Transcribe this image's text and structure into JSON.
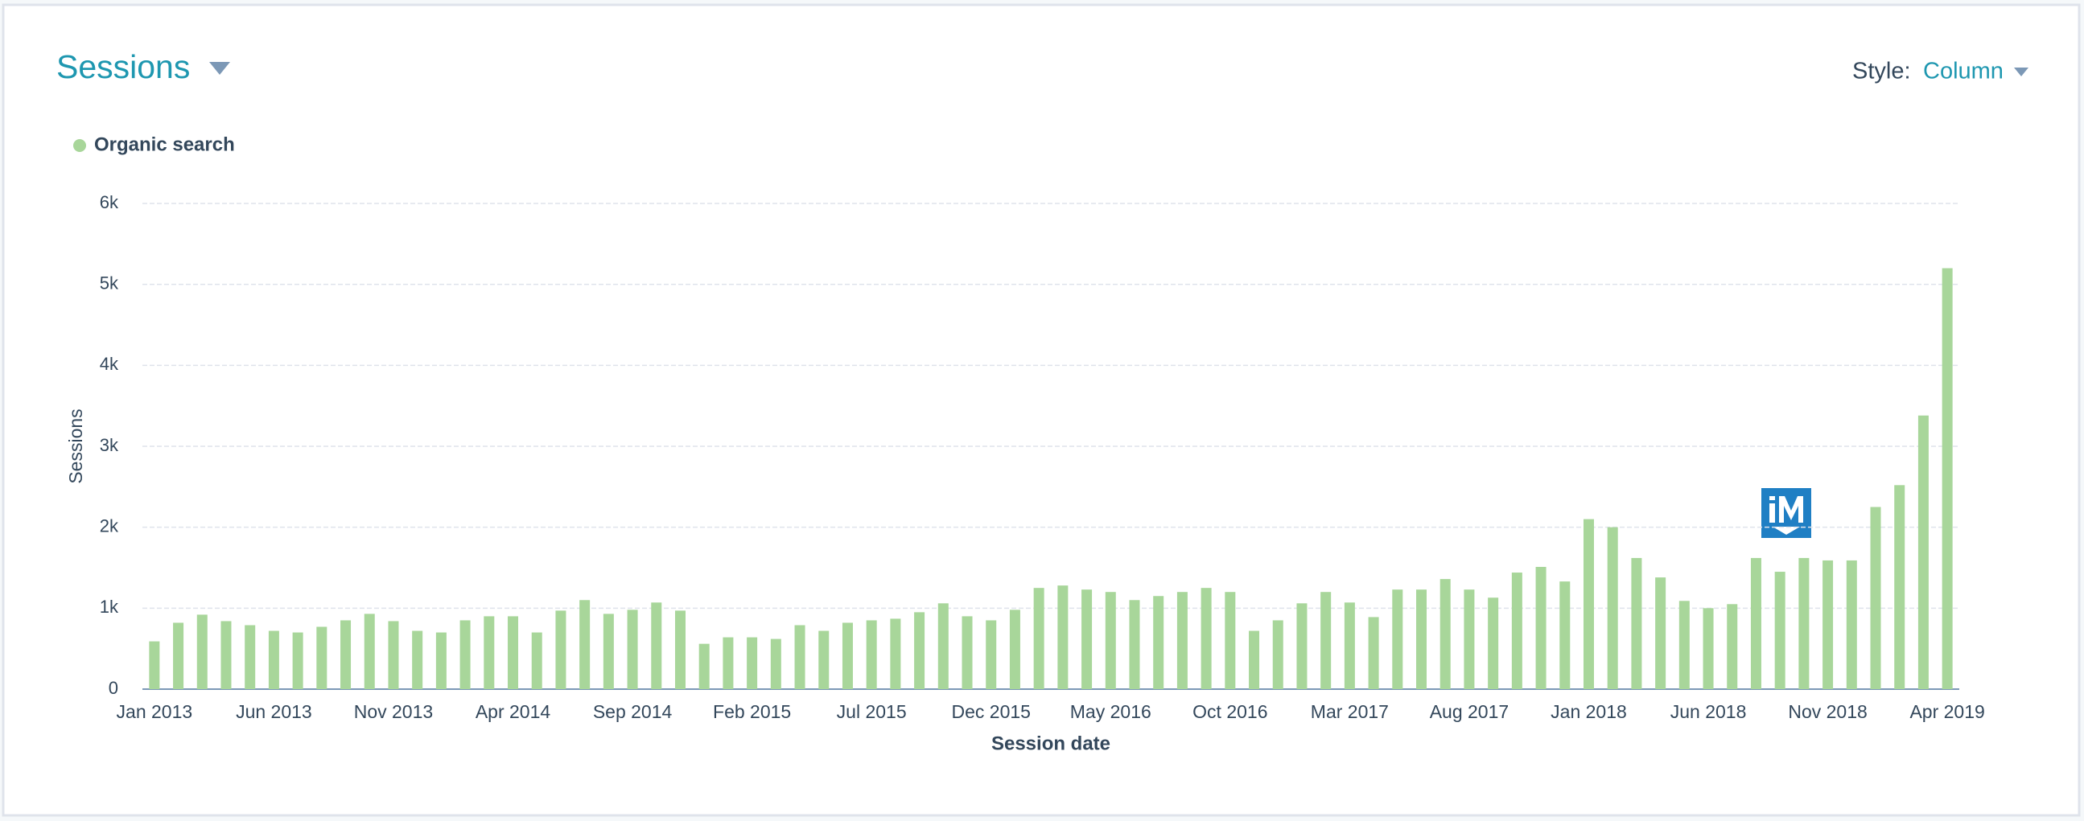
{
  "header": {
    "title": "Sessions",
    "style_label": "Style:",
    "style_value": "Column"
  },
  "chart_data": {
    "type": "bar",
    "x_label": "Session date",
    "y_label": "Sessions",
    "categories": [
      "Jan 2013",
      null,
      null,
      null,
      null,
      "Jun 2013",
      null,
      null,
      null,
      null,
      "Nov 2013",
      null,
      null,
      null,
      null,
      "Apr 2014",
      null,
      null,
      null,
      null,
      "Sep 2014",
      null,
      null,
      null,
      null,
      "Feb 2015",
      null,
      null,
      null,
      null,
      "Jul 2015",
      null,
      null,
      null,
      null,
      "Dec 2015",
      null,
      null,
      null,
      null,
      "May 2016",
      null,
      null,
      null,
      null,
      "Oct 2016",
      null,
      null,
      null,
      null,
      "Mar 2017",
      null,
      null,
      null,
      null,
      "Aug 2017",
      null,
      null,
      null,
      null,
      "Jan 2018",
      null,
      null,
      null,
      null,
      "Jun 2018",
      null,
      null,
      null,
      null,
      "Nov 2018",
      null,
      null,
      null,
      null,
      "Apr 2019"
    ],
    "series": [
      {
        "name": "Organic search",
        "color": "#a8d69a",
        "values": [
          590,
          820,
          920,
          840,
          790,
          720,
          700,
          770,
          850,
          930,
          840,
          720,
          700,
          850,
          900,
          900,
          700,
          970,
          1100,
          930,
          980,
          1070,
          970,
          560,
          640,
          640,
          620,
          790,
          720,
          820,
          850,
          870,
          950,
          1060,
          900,
          850,
          980,
          1250,
          1280,
          1230,
          1200,
          1100,
          1150,
          1200,
          1250,
          1200,
          720,
          850,
          1060,
          1200,
          1070,
          890,
          1230,
          1230,
          1360,
          1230,
          1130,
          1440,
          1510,
          1330,
          2100,
          2000,
          1620,
          1380,
          1090,
          1000,
          1050,
          1620,
          1450,
          1620,
          1590,
          1590,
          2250,
          2520,
          3380,
          5200
        ]
      }
    ],
    "ylim": [
      0,
      6000
    ],
    "yticks": [
      0,
      {
        "value": 1000,
        "label": "1k"
      },
      {
        "value": 2000,
        "label": "2k"
      },
      {
        "value": 3000,
        "label": "3k"
      },
      {
        "value": 4000,
        "label": "4k"
      },
      {
        "value": 5000,
        "label": "5k"
      },
      {
        "value": 6000,
        "label": "6k"
      }
    ],
    "grid": true
  }
}
